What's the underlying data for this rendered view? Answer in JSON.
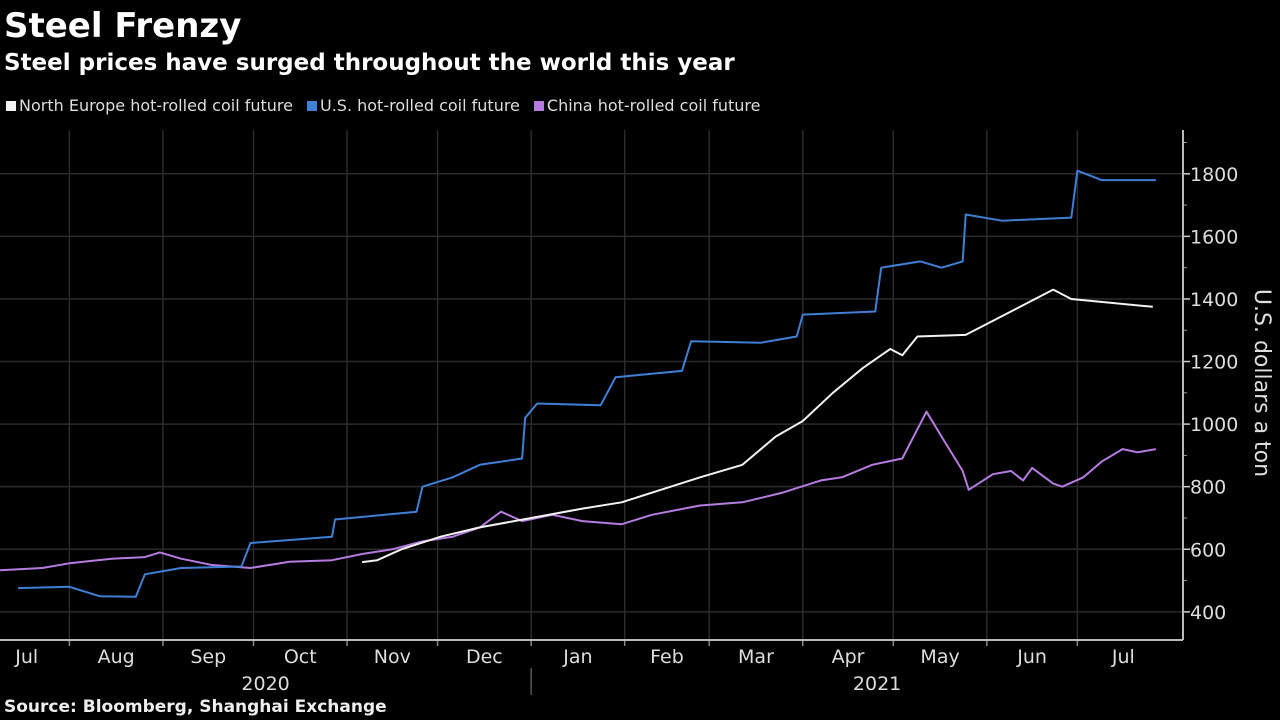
{
  "title": "Steel Frenzy",
  "subtitle": "Steel prices have surged throughout the world this year",
  "source": "Source: Bloomberg, Shanghai Exchange",
  "chart_data": {
    "type": "line",
    "title": "Steel Frenzy",
    "subtitle": "Steel prices have surged throughout the world this year",
    "ylabel": "U.S. dollars a ton",
    "ylim": [
      310,
      1940
    ],
    "yticks": [
      400,
      600,
      800,
      1000,
      1200,
      1400,
      1600,
      1800
    ],
    "y_axis_side": "right",
    "xlim": [
      "2020-07-09",
      "2021-08-05"
    ],
    "xticks": [
      {
        "label": "Jul",
        "date": "2020-07-01"
      },
      {
        "label": "Aug",
        "date": "2020-08-01"
      },
      {
        "label": "Sep",
        "date": "2020-09-01"
      },
      {
        "label": "Oct",
        "date": "2020-10-01"
      },
      {
        "label": "Nov",
        "date": "2020-11-01"
      },
      {
        "label": "Dec",
        "date": "2020-12-01"
      },
      {
        "label": "Jan",
        "date": "2021-01-01"
      },
      {
        "label": "Feb",
        "date": "2021-02-01"
      },
      {
        "label": "Mar",
        "date": "2021-03-01"
      },
      {
        "label": "Apr",
        "date": "2021-04-01"
      },
      {
        "label": "May",
        "date": "2021-05-01"
      },
      {
        "label": "Jun",
        "date": "2021-06-01"
      },
      {
        "label": "Jul",
        "date": "2021-07-01"
      }
    ],
    "year_labels": [
      "2020",
      "2021"
    ],
    "grid": true,
    "legend_position": "top-left",
    "series": [
      {
        "name": "North Europe hot-rolled coil future",
        "color": "#f2f2f2",
        "points": [
          [
            "2020-11-06",
            559
          ],
          [
            "2020-11-11",
            565
          ],
          [
            "2020-11-19",
            600
          ],
          [
            "2020-12-02",
            640
          ],
          [
            "2020-12-15",
            670
          ],
          [
            "2021-01-01",
            700
          ],
          [
            "2021-01-18",
            730
          ],
          [
            "2021-01-31",
            750
          ],
          [
            "2021-02-13",
            790
          ],
          [
            "2021-02-26",
            830
          ],
          [
            "2021-03-12",
            870
          ],
          [
            "2021-03-23",
            960
          ],
          [
            "2021-04-01",
            1010
          ],
          [
            "2021-04-11",
            1100
          ],
          [
            "2021-04-21",
            1180
          ],
          [
            "2021-04-30",
            1240
          ],
          [
            "2021-05-04",
            1220
          ],
          [
            "2021-05-09",
            1280
          ],
          [
            "2021-05-25",
            1285
          ],
          [
            "2021-06-23",
            1430
          ],
          [
            "2021-06-29",
            1400
          ],
          [
            "2021-07-26",
            1375
          ]
        ]
      },
      {
        "name": "U.S. hot-rolled coil future",
        "color": "#3f7fd6",
        "points": [
          [
            "2020-07-15",
            476
          ],
          [
            "2020-08-01",
            480
          ],
          [
            "2020-08-11",
            450
          ],
          [
            "2020-08-23",
            448
          ],
          [
            "2020-08-26",
            520
          ],
          [
            "2020-09-07",
            540
          ],
          [
            "2020-09-27",
            545
          ],
          [
            "2020-09-30",
            620
          ],
          [
            "2020-10-27",
            640
          ],
          [
            "2020-10-28",
            695
          ],
          [
            "2020-11-24",
            720
          ],
          [
            "2020-11-26",
            800
          ],
          [
            "2020-12-06",
            830
          ],
          [
            "2020-12-15",
            870
          ],
          [
            "2020-12-29",
            890
          ],
          [
            "2020-12-30",
            1020
          ],
          [
            "2021-01-03",
            1066
          ],
          [
            "2021-01-24",
            1060
          ],
          [
            "2021-01-29",
            1150
          ],
          [
            "2021-02-20",
            1170
          ],
          [
            "2021-02-23",
            1265
          ],
          [
            "2021-03-18",
            1260
          ],
          [
            "2021-03-30",
            1280
          ],
          [
            "2021-04-01",
            1350
          ],
          [
            "2021-04-25",
            1360
          ],
          [
            "2021-04-27",
            1500
          ],
          [
            "2021-05-10",
            1520
          ],
          [
            "2021-05-17",
            1500
          ],
          [
            "2021-05-24",
            1520
          ],
          [
            "2021-05-25",
            1670
          ],
          [
            "2021-06-06",
            1650
          ],
          [
            "2021-06-29",
            1660
          ],
          [
            "2021-07-01",
            1810
          ],
          [
            "2021-07-09",
            1780
          ],
          [
            "2021-07-27",
            1780
          ]
        ]
      },
      {
        "name": "China hot-rolled coil future",
        "color": "#b57be0",
        "points": [
          [
            "2020-07-09",
            533
          ],
          [
            "2020-07-23",
            540
          ],
          [
            "2020-08-01",
            555
          ],
          [
            "2020-08-15",
            570
          ],
          [
            "2020-08-26",
            575
          ],
          [
            "2020-08-31",
            590
          ],
          [
            "2020-09-07",
            570
          ],
          [
            "2020-09-17",
            550
          ],
          [
            "2020-09-30",
            540
          ],
          [
            "2020-10-13",
            560
          ],
          [
            "2020-10-27",
            565
          ],
          [
            "2020-11-06",
            585
          ],
          [
            "2020-11-16",
            600
          ],
          [
            "2020-11-26",
            625
          ],
          [
            "2020-12-06",
            640
          ],
          [
            "2020-12-15",
            670
          ],
          [
            "2020-12-22",
            720
          ],
          [
            "2020-12-29",
            690
          ],
          [
            "2021-01-08",
            710
          ],
          [
            "2021-01-18",
            690
          ],
          [
            "2021-01-31",
            680
          ],
          [
            "2021-02-10",
            710
          ],
          [
            "2021-02-26",
            740
          ],
          [
            "2021-03-12",
            750
          ],
          [
            "2021-03-25",
            780
          ],
          [
            "2021-04-07",
            820
          ],
          [
            "2021-04-14",
            830
          ],
          [
            "2021-04-24",
            870
          ],
          [
            "2021-05-04",
            890
          ],
          [
            "2021-05-12",
            1040
          ],
          [
            "2021-05-17",
            960
          ],
          [
            "2021-05-24",
            850
          ],
          [
            "2021-05-26",
            790
          ],
          [
            "2021-06-03",
            840
          ],
          [
            "2021-06-09",
            850
          ],
          [
            "2021-06-13",
            820
          ],
          [
            "2021-06-16",
            860
          ],
          [
            "2021-06-23",
            810
          ],
          [
            "2021-06-26",
            800
          ],
          [
            "2021-07-03",
            830
          ],
          [
            "2021-07-09",
            880
          ],
          [
            "2021-07-16",
            920
          ],
          [
            "2021-07-21",
            910
          ],
          [
            "2021-07-27",
            920
          ]
        ]
      }
    ]
  }
}
